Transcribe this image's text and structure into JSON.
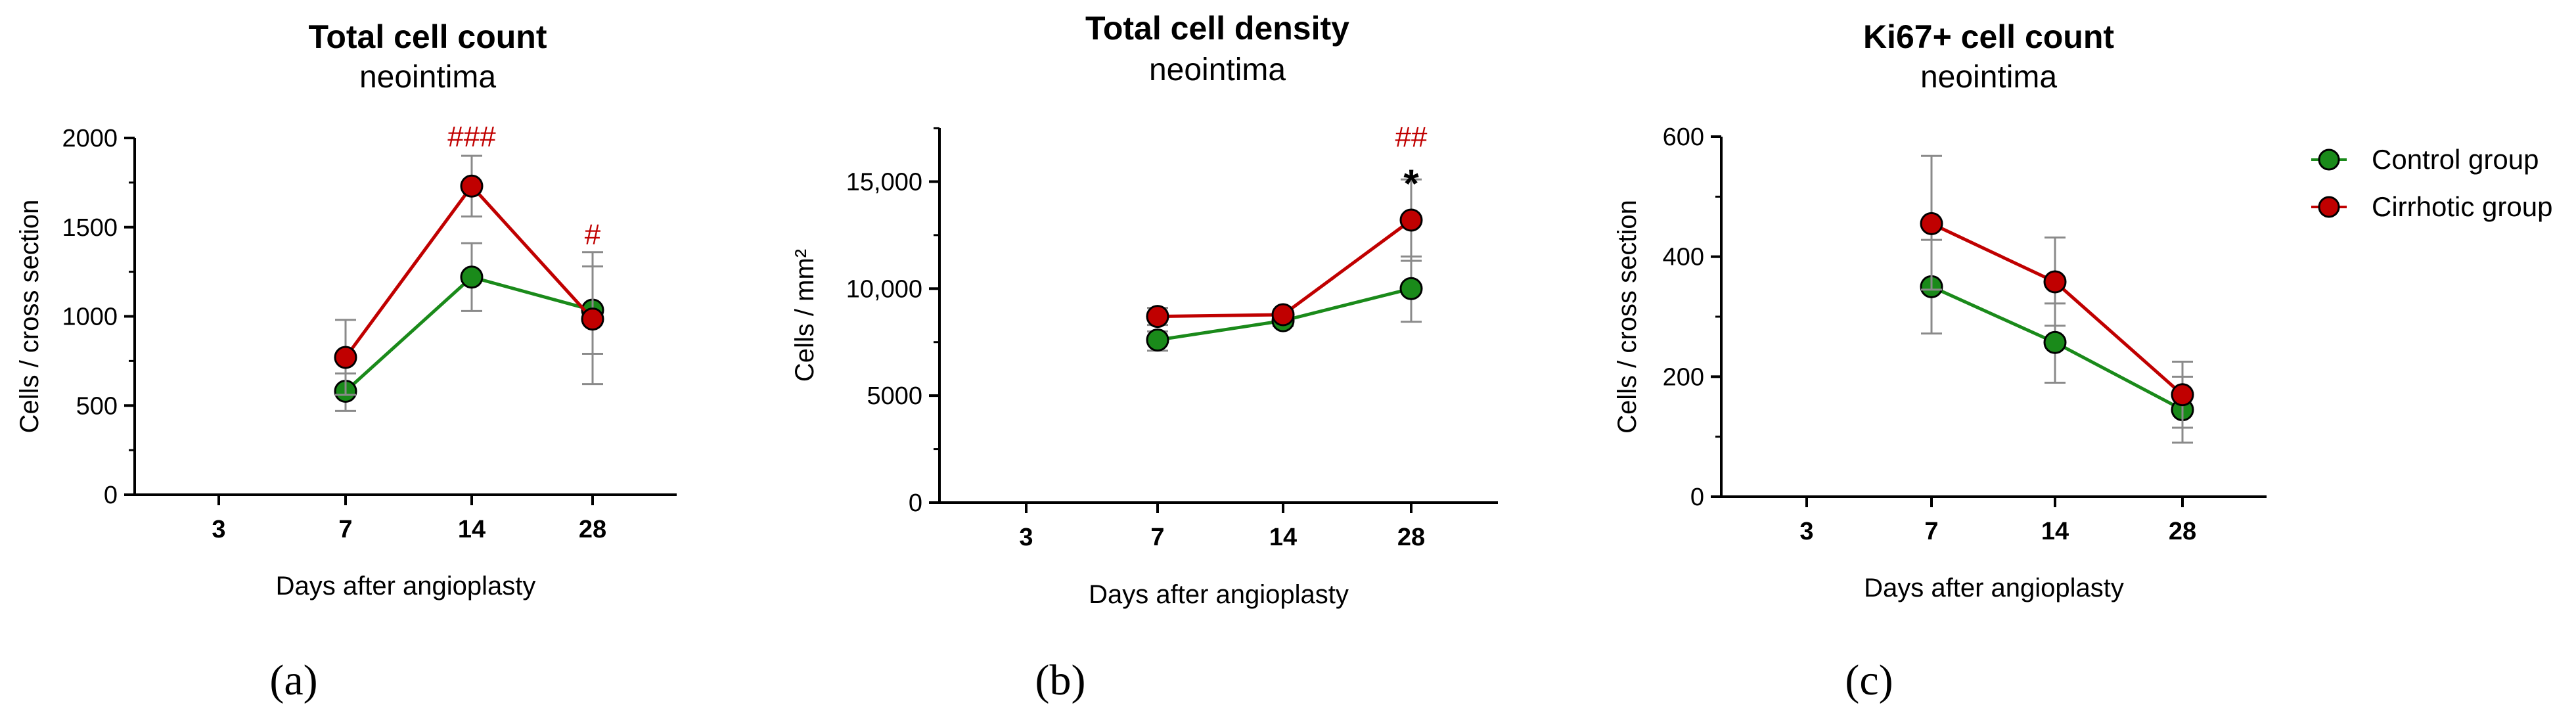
{
  "legend": {
    "items": [
      {
        "name": "Control group",
        "color": "#1a8a1a"
      },
      {
        "name": "Cirrhotic group",
        "color": "#c00000"
      }
    ]
  },
  "chart_data": [
    {
      "type": "line",
      "panel": "(a)",
      "title": "Total cell count",
      "subtitle": "neointima",
      "xlabel": "Days after angioplasty",
      "ylabel": "Cells / cross section",
      "categories": [
        "3",
        "7",
        "14",
        "28"
      ],
      "ylim": [
        0,
        2000
      ],
      "yticks": [
        0,
        500,
        1000,
        1500,
        2000
      ],
      "ytick_labels": [
        "0",
        "500",
        "1000",
        "1500",
        "2000"
      ],
      "series": [
        {
          "name": "Control group",
          "color": "#1a8a1a",
          "values": [
            null,
            580,
            1220,
            1035
          ],
          "err_low": [
            null,
            470,
            1030,
            790
          ],
          "err_high": [
            null,
            680,
            1410,
            1280
          ]
        },
        {
          "name": "Cirrhotic group",
          "color": "#c00000",
          "values": [
            null,
            770,
            1730,
            985
          ],
          "err_low": [
            null,
            560,
            1560,
            620
          ],
          "err_high": [
            null,
            980,
            1900,
            1360
          ]
        }
      ],
      "annotations": [
        {
          "category": "14",
          "text": "###",
          "value": 2010,
          "color": "#c00000"
        },
        {
          "category": "28",
          "text": "#",
          "value": 1460,
          "color": "#c00000"
        }
      ]
    },
    {
      "type": "line",
      "panel": "(b)",
      "title": "Total cell density",
      "subtitle": "neointima",
      "xlabel": "Days after angioplasty",
      "ylabel": "Cells / mm²",
      "categories": [
        "3",
        "7",
        "14",
        "28"
      ],
      "ylim": [
        0,
        17500
      ],
      "yticks": [
        0,
        5000,
        10000,
        15000
      ],
      "ytick_labels": [
        "0",
        "5000",
        "10,000",
        "15,000"
      ],
      "series": [
        {
          "name": "Control group",
          "color": "#1a8a1a",
          "values": [
            null,
            7600,
            8500,
            10000
          ],
          "err_low": [
            null,
            7100,
            8250,
            8450
          ],
          "err_high": [
            null,
            8000,
            8750,
            11500
          ]
        },
        {
          "name": "Cirrhotic group",
          "color": "#c00000",
          "values": [
            null,
            8700,
            8780,
            13200
          ],
          "err_low": [
            null,
            8300,
            8600,
            11300
          ],
          "err_high": [
            null,
            9100,
            8950,
            15100
          ]
        }
      ],
      "annotations": [
        {
          "category": "28",
          "text": "##",
          "value": 17100,
          "color": "#c00000"
        },
        {
          "category": "28",
          "text": "*",
          "value": 15200,
          "color": "#000000"
        }
      ]
    },
    {
      "type": "line",
      "panel": "(c)",
      "title": "Ki67+ cell count",
      "subtitle": "neointima",
      "xlabel": "Days after angioplasty",
      "ylabel": "Cells / cross section",
      "categories": [
        "3",
        "7",
        "14",
        "28"
      ],
      "ylim": [
        0,
        600
      ],
      "yticks": [
        0,
        200,
        400,
        600
      ],
      "ytick_labels": [
        "0",
        "200",
        "400",
        "600"
      ],
      "series": [
        {
          "name": "Control group",
          "color": "#1a8a1a",
          "values": [
            null,
            350,
            257,
            145
          ],
          "err_low": [
            null,
            272,
            190,
            90
          ],
          "err_high": [
            null,
            428,
            322,
            200
          ]
        },
        {
          "name": "Cirrhotic group",
          "color": "#c00000",
          "values": [
            null,
            455,
            358,
            170
          ],
          "err_low": [
            null,
            345,
            285,
            115
          ],
          "err_high": [
            null,
            568,
            432,
            225
          ]
        }
      ],
      "annotations": []
    }
  ]
}
